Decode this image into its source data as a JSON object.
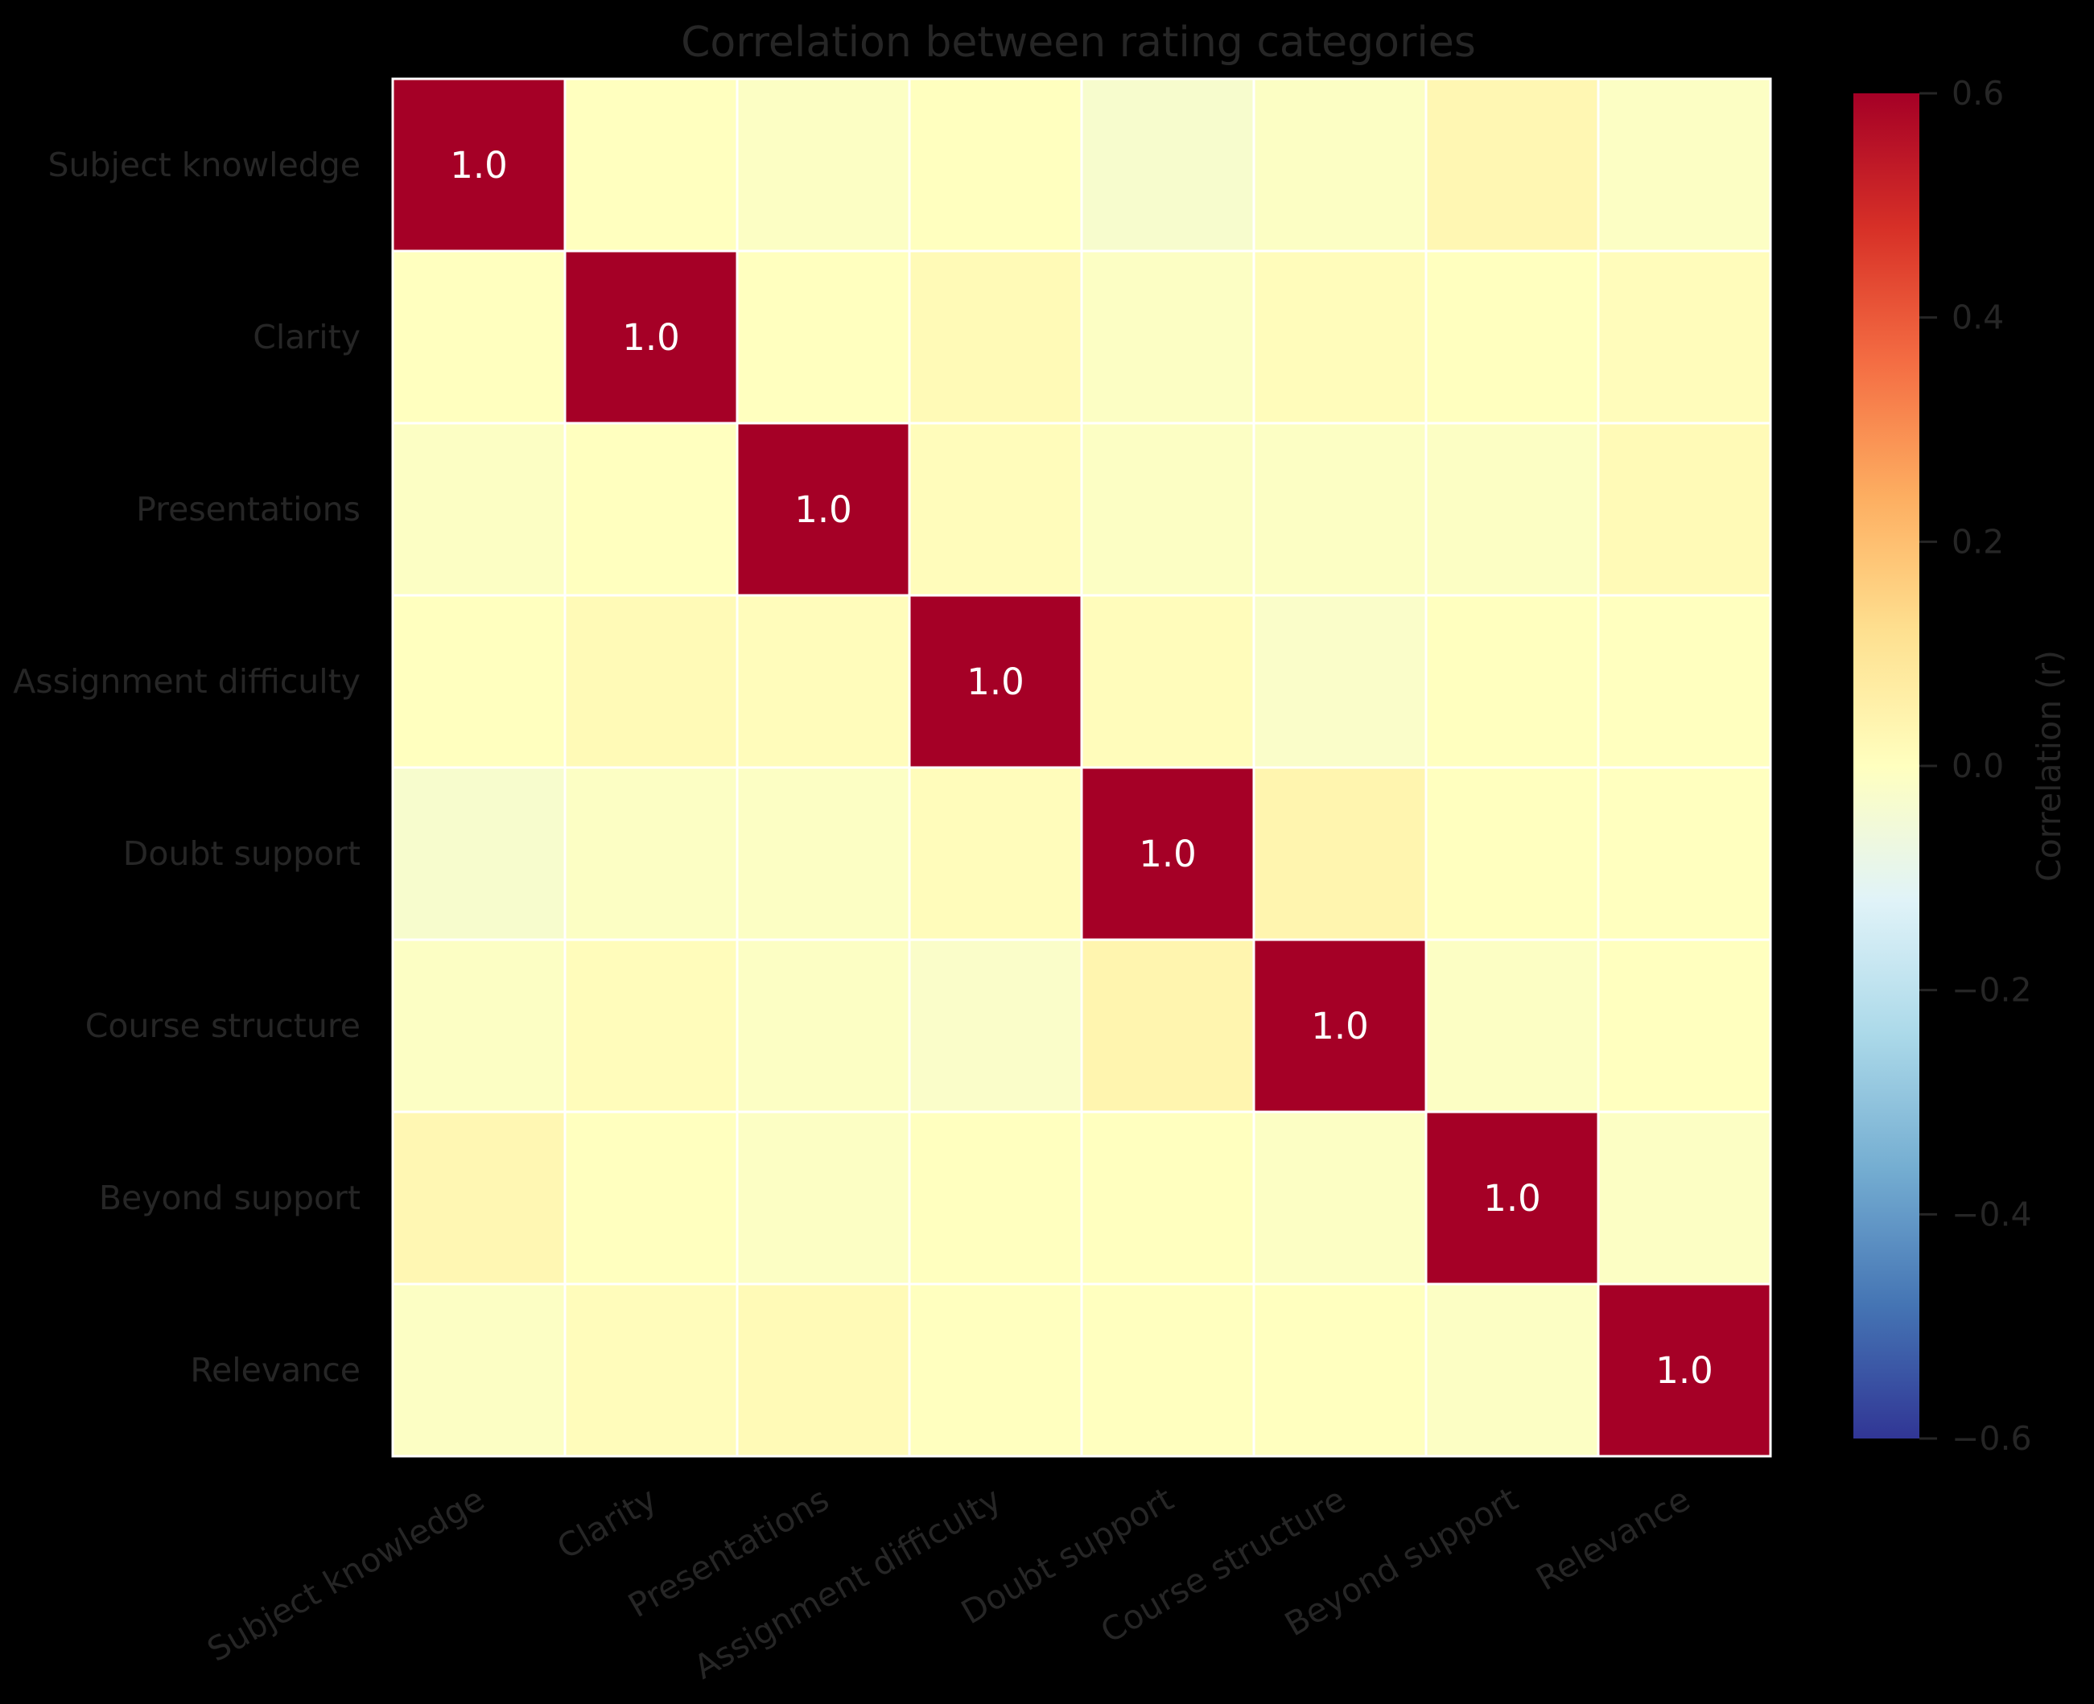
{
  "chart_data": {
    "type": "heatmap",
    "title": "Correlation between rating categories",
    "categories": [
      "Subject knowledge",
      "Clarity",
      "Presentations",
      "Assignment difficulty",
      "Doubt support",
      "Course structure",
      "Beyond support",
      "Relevance"
    ],
    "values": [
      [
        1.0,
        0.0,
        -0.01,
        0.0,
        -0.03,
        -0.01,
        0.03,
        -0.01
      ],
      [
        0.0,
        1.0,
        0.0,
        0.02,
        -0.01,
        0.01,
        0.0,
        0.01
      ],
      [
        -0.01,
        0.0,
        1.0,
        0.01,
        -0.01,
        -0.01,
        -0.01,
        0.02
      ],
      [
        0.0,
        0.02,
        0.01,
        1.0,
        0.01,
        -0.02,
        0.0,
        0.0
      ],
      [
        -0.03,
        -0.01,
        -0.01,
        0.01,
        1.0,
        0.04,
        0.0,
        0.0
      ],
      [
        -0.01,
        0.01,
        -0.01,
        -0.02,
        0.04,
        1.0,
        -0.01,
        0.0
      ],
      [
        0.03,
        0.0,
        -0.01,
        0.0,
        0.0,
        -0.01,
        1.0,
        -0.01
      ],
      [
        -0.01,
        0.01,
        0.02,
        0.0,
        0.0,
        0.0,
        -0.01,
        1.0
      ]
    ],
    "annotations": [
      [
        "1.0",
        "",
        "",
        "",
        "",
        "",
        "",
        ""
      ],
      [
        "",
        "1.0",
        "",
        "",
        "",
        "",
        "",
        ""
      ],
      [
        "",
        "",
        "1.0",
        "",
        "",
        "",
        "",
        ""
      ],
      [
        "",
        "",
        "",
        "1.0",
        "",
        "",
        "",
        ""
      ],
      [
        "",
        "",
        "",
        "",
        "1.0",
        "",
        "",
        ""
      ],
      [
        "",
        "",
        "",
        "",
        "",
        "1.0",
        "",
        ""
      ],
      [
        "",
        "",
        "",
        "",
        "",
        "",
        "1.0",
        ""
      ],
      [
        "",
        "",
        "",
        "",
        "",
        "",
        "",
        "1.0"
      ]
    ],
    "colormap": "RdYlBu_r",
    "vmin": -0.6,
    "vmax": 0.6,
    "colorbar": {
      "label": "Correlation (r)",
      "ticks": [
        0.6,
        0.4,
        0.2,
        0.0,
        -0.2,
        -0.4,
        -0.6
      ],
      "tick_labels": [
        "0.6",
        "0.4",
        "0.2",
        "0.0",
        "−0.2",
        "−0.4",
        "−0.6"
      ]
    },
    "colors": {
      "background": "#000000",
      "cell_border": "#ffffff",
      "text": "#262626",
      "annotation": "#ffffff"
    }
  }
}
